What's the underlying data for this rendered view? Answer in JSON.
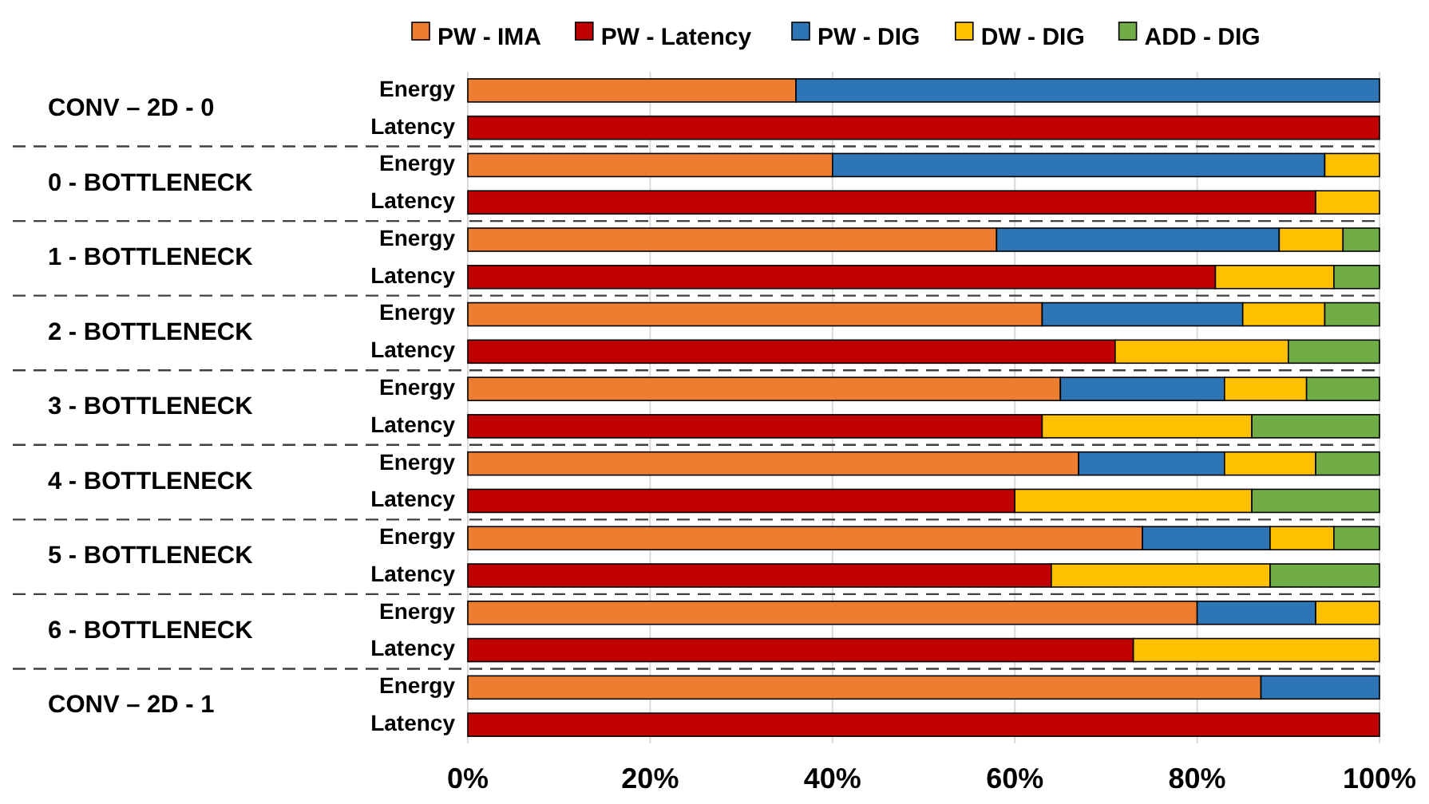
{
  "chart_data": {
    "type": "bar",
    "orientation": "horizontal",
    "stacked": true,
    "categories": [
      "Energy",
      "Latency",
      "Energy",
      "Latency",
      "Energy",
      "Latency",
      "Energy",
      "Latency",
      "Energy",
      "Latency",
      "Energy",
      "Latency",
      "Energy",
      "Latency",
      "Energy",
      "Latency",
      "Energy",
      "Latency"
    ],
    "series": [
      {
        "name": "PW - IMA",
        "color": "#ed7d31",
        "values": [
          36,
          null,
          40,
          null,
          58,
          null,
          63,
          null,
          65,
          null,
          67,
          null,
          74,
          null,
          80,
          null,
          87,
          null
        ]
      },
      {
        "name": "PW - Latency",
        "color": "#c00000",
        "values": [
          null,
          100,
          null,
          93,
          null,
          82,
          null,
          71,
          null,
          63,
          null,
          60,
          null,
          64,
          null,
          73,
          null,
          100
        ]
      },
      {
        "name": "PW - DIG",
        "color": "#2e75b6",
        "values": [
          64,
          null,
          54,
          null,
          31,
          null,
          22,
          null,
          18,
          null,
          16,
          null,
          14,
          null,
          13,
          null,
          13,
          null
        ]
      },
      {
        "name": "DW - DIG",
        "color": "#ffc000",
        "values": [
          null,
          null,
          6,
          7,
          7,
          13,
          9,
          19,
          9,
          23,
          10,
          26,
          7,
          24,
          7,
          27,
          null,
          null
        ]
      },
      {
        "name": "ADD - DIG",
        "color": "#70ad47",
        "values": [
          null,
          null,
          null,
          null,
          4,
          5,
          6,
          10,
          8,
          14,
          7,
          14,
          5,
          12,
          null,
          null,
          null,
          null
        ]
      }
    ],
    "annotations": [
      "CONV – 2D - 0",
      "0 - BOTTLENECK",
      "1 - BOTTLENECK",
      "2 - BOTTLENECK",
      "3 - BOTTLENECK",
      "4 - BOTTLENECK",
      "5 - BOTTLENECK",
      "6 - BOTTLENECK",
      "CONV – 2D - 1"
    ],
    "xlim": [
      0,
      100
    ],
    "xticks": [
      {
        "value": 0,
        "label": "0%"
      },
      {
        "value": 20,
        "label": "20%"
      },
      {
        "value": 40,
        "label": "40%"
      },
      {
        "value": 60,
        "label": "60%"
      },
      {
        "value": 80,
        "label": "80%"
      },
      {
        "value": 100,
        "label": "100%"
      }
    ],
    "grid": "x",
    "legend": "top"
  }
}
